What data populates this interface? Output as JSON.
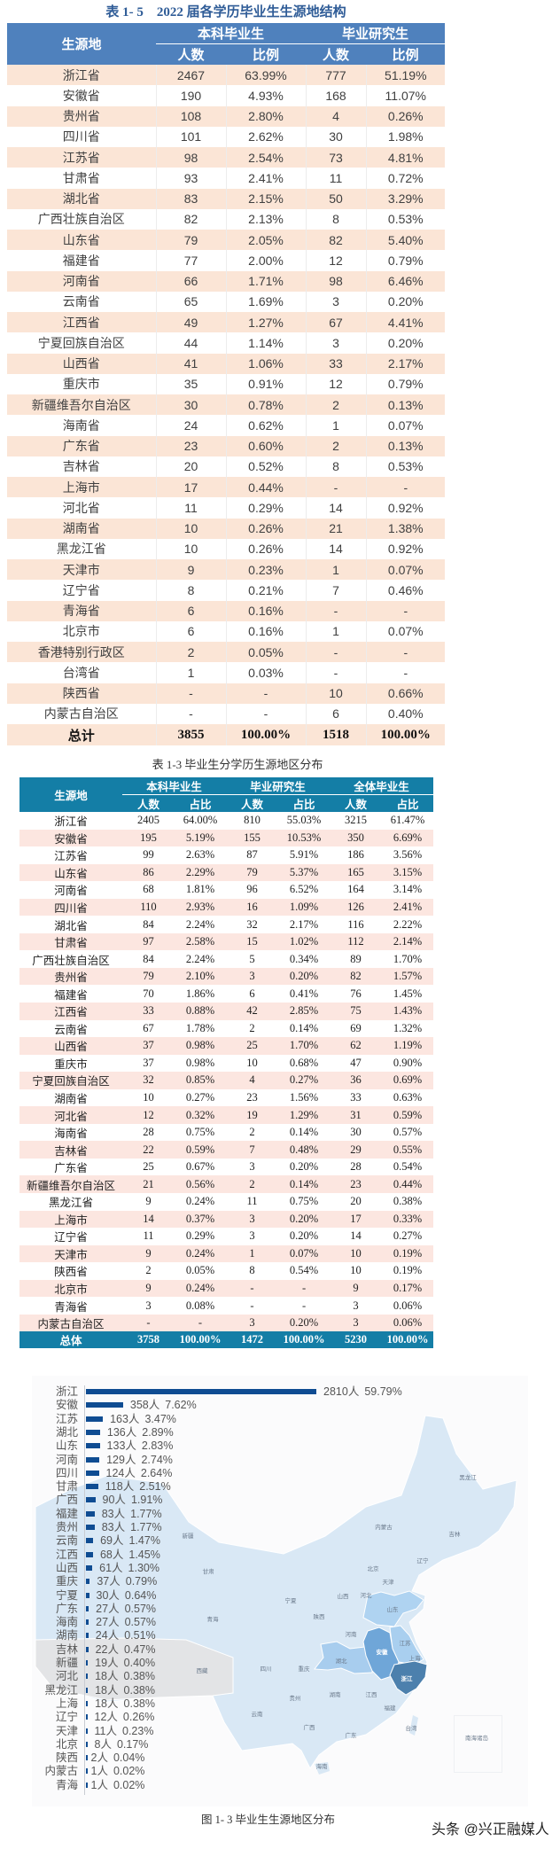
{
  "table1": {
    "title": "表 1- 5　2022 届各学历毕业生生源地结构",
    "header": {
      "region": "生源地",
      "groups": [
        "本科毕业生",
        "毕业研究生"
      ],
      "sub": [
        "人数",
        "比例",
        "人数",
        "比例"
      ]
    },
    "rows": [
      [
        "浙江省",
        "2467",
        "63.99%",
        "777",
        "51.19%"
      ],
      [
        "安徽省",
        "190",
        "4.93%",
        "168",
        "11.07%"
      ],
      [
        "贵州省",
        "108",
        "2.80%",
        "4",
        "0.26%"
      ],
      [
        "四川省",
        "101",
        "2.62%",
        "30",
        "1.98%"
      ],
      [
        "江苏省",
        "98",
        "2.54%",
        "73",
        "4.81%"
      ],
      [
        "甘肃省",
        "93",
        "2.41%",
        "11",
        "0.72%"
      ],
      [
        "湖北省",
        "83",
        "2.15%",
        "50",
        "3.29%"
      ],
      [
        "广西壮族自治区",
        "82",
        "2.13%",
        "8",
        "0.53%"
      ],
      [
        "山东省",
        "79",
        "2.05%",
        "82",
        "5.40%"
      ],
      [
        "福建省",
        "77",
        "2.00%",
        "12",
        "0.79%"
      ],
      [
        "河南省",
        "66",
        "1.71%",
        "98",
        "6.46%"
      ],
      [
        "云南省",
        "65",
        "1.69%",
        "3",
        "0.20%"
      ],
      [
        "江西省",
        "49",
        "1.27%",
        "67",
        "4.41%"
      ],
      [
        "宁夏回族自治区",
        "44",
        "1.14%",
        "3",
        "0.20%"
      ],
      [
        "山西省",
        "41",
        "1.06%",
        "33",
        "2.17%"
      ],
      [
        "重庆市",
        "35",
        "0.91%",
        "12",
        "0.79%"
      ],
      [
        "新疆维吾尔自治区",
        "30",
        "0.78%",
        "2",
        "0.13%"
      ],
      [
        "海南省",
        "24",
        "0.62%",
        "1",
        "0.07%"
      ],
      [
        "广东省",
        "23",
        "0.60%",
        "2",
        "0.13%"
      ],
      [
        "吉林省",
        "20",
        "0.52%",
        "8",
        "0.53%"
      ],
      [
        "上海市",
        "17",
        "0.44%",
        "-",
        "-"
      ],
      [
        "河北省",
        "11",
        "0.29%",
        "14",
        "0.92%"
      ],
      [
        "湖南省",
        "10",
        "0.26%",
        "21",
        "1.38%"
      ],
      [
        "黑龙江省",
        "10",
        "0.26%",
        "14",
        "0.92%"
      ],
      [
        "天津市",
        "9",
        "0.23%",
        "1",
        "0.07%"
      ],
      [
        "辽宁省",
        "8",
        "0.21%",
        "7",
        "0.46%"
      ],
      [
        "青海省",
        "6",
        "0.16%",
        "-",
        "-"
      ],
      [
        "北京市",
        "6",
        "0.16%",
        "1",
        "0.07%"
      ],
      [
        "香港特别行政区",
        "2",
        "0.05%",
        "-",
        "-"
      ],
      [
        "台湾省",
        "1",
        "0.03%",
        "-",
        "-"
      ],
      [
        "陕西省",
        "-",
        "-",
        "10",
        "0.66%"
      ],
      [
        "内蒙古自治区",
        "-",
        "-",
        "6",
        "0.40%"
      ]
    ],
    "total": [
      "总计",
      "3855",
      "100.00%",
      "1518",
      "100.00%"
    ]
  },
  "table2": {
    "title": "表 1-3 毕业生分学历生源地区分布",
    "header": {
      "region": "生源地",
      "groups": [
        "本科毕业生",
        "毕业研究生",
        "全体毕业生"
      ],
      "sub": [
        "人数",
        "占比",
        "人数",
        "占比",
        "人数",
        "占比"
      ]
    },
    "rows": [
      [
        "浙江省",
        "2405",
        "64.00%",
        "810",
        "55.03%",
        "3215",
        "61.47%"
      ],
      [
        "安徽省",
        "195",
        "5.19%",
        "155",
        "10.53%",
        "350",
        "6.69%"
      ],
      [
        "江苏省",
        "99",
        "2.63%",
        "87",
        "5.91%",
        "186",
        "3.56%"
      ],
      [
        "山东省",
        "86",
        "2.29%",
        "79",
        "5.37%",
        "165",
        "3.15%"
      ],
      [
        "河南省",
        "68",
        "1.81%",
        "96",
        "6.52%",
        "164",
        "3.14%"
      ],
      [
        "四川省",
        "110",
        "2.93%",
        "16",
        "1.09%",
        "126",
        "2.41%"
      ],
      [
        "湖北省",
        "84",
        "2.24%",
        "32",
        "2.17%",
        "116",
        "2.22%"
      ],
      [
        "甘肃省",
        "97",
        "2.58%",
        "15",
        "1.02%",
        "112",
        "2.14%"
      ],
      [
        "广西壮族自治区",
        "84",
        "2.24%",
        "5",
        "0.34%",
        "89",
        "1.70%"
      ],
      [
        "贵州省",
        "79",
        "2.10%",
        "3",
        "0.20%",
        "82",
        "1.57%"
      ],
      [
        "福建省",
        "70",
        "1.86%",
        "6",
        "0.41%",
        "76",
        "1.45%"
      ],
      [
        "江西省",
        "33",
        "0.88%",
        "42",
        "2.85%",
        "75",
        "1.43%"
      ],
      [
        "云南省",
        "67",
        "1.78%",
        "2",
        "0.14%",
        "69",
        "1.32%"
      ],
      [
        "山西省",
        "37",
        "0.98%",
        "25",
        "1.70%",
        "62",
        "1.19%"
      ],
      [
        "重庆市",
        "37",
        "0.98%",
        "10",
        "0.68%",
        "47",
        "0.90%"
      ],
      [
        "宁夏回族自治区",
        "32",
        "0.85%",
        "4",
        "0.27%",
        "36",
        "0.69%"
      ],
      [
        "湖南省",
        "10",
        "0.27%",
        "23",
        "1.56%",
        "33",
        "0.63%"
      ],
      [
        "河北省",
        "12",
        "0.32%",
        "19",
        "1.29%",
        "31",
        "0.59%"
      ],
      [
        "海南省",
        "28",
        "0.75%",
        "2",
        "0.14%",
        "30",
        "0.57%"
      ],
      [
        "吉林省",
        "22",
        "0.59%",
        "7",
        "0.48%",
        "29",
        "0.55%"
      ],
      [
        "广东省",
        "25",
        "0.67%",
        "3",
        "0.20%",
        "28",
        "0.54%"
      ],
      [
        "新疆维吾尔自治区",
        "21",
        "0.56%",
        "2",
        "0.14%",
        "23",
        "0.44%"
      ],
      [
        "黑龙江省",
        "9",
        "0.24%",
        "11",
        "0.75%",
        "20",
        "0.38%"
      ],
      [
        "上海市",
        "14",
        "0.37%",
        "3",
        "0.20%",
        "17",
        "0.33%"
      ],
      [
        "辽宁省",
        "11",
        "0.29%",
        "3",
        "0.20%",
        "14",
        "0.27%"
      ],
      [
        "天津市",
        "9",
        "0.24%",
        "1",
        "0.07%",
        "10",
        "0.19%"
      ],
      [
        "陕西省",
        "2",
        "0.05%",
        "8",
        "0.54%",
        "10",
        "0.19%"
      ],
      [
        "北京市",
        "9",
        "0.24%",
        "-",
        "-",
        "9",
        "0.17%"
      ],
      [
        "青海省",
        "3",
        "0.08%",
        "-",
        "-",
        "3",
        "0.06%"
      ],
      [
        "内蒙古自治区",
        "-",
        "-",
        "3",
        "0.20%",
        "3",
        "0.06%"
      ]
    ],
    "total": [
      "总体",
      "3758",
      "100.00%",
      "1472",
      "100.00%",
      "5230",
      "100.00%"
    ]
  },
  "chart_data": {
    "type": "bar",
    "orientation": "horizontal",
    "caption": "图 1- 3  毕业生生源地区分布",
    "unit": "人",
    "categories": [
      "浙江",
      "安徽",
      "江苏",
      "湖北",
      "山东",
      "河南",
      "四川",
      "甘肃",
      "广西",
      "福建",
      "贵州",
      "云南",
      "江西",
      "山西",
      "重庆",
      "宁夏",
      "广东",
      "海南",
      "湖南",
      "吉林",
      "新疆",
      "河北",
      "黑龙江",
      "上海",
      "辽宁",
      "天津",
      "北京",
      "陕西",
      "内蒙古",
      "青海"
    ],
    "values": [
      2810,
      358,
      163,
      136,
      133,
      129,
      124,
      118,
      90,
      83,
      83,
      69,
      68,
      61,
      37,
      30,
      27,
      27,
      24,
      22,
      19,
      18,
      18,
      18,
      12,
      11,
      8,
      2,
      1,
      1
    ],
    "percent_labels": [
      "59.79%",
      "7.62%",
      "3.47%",
      "2.89%",
      "2.83%",
      "2.74%",
      "2.64%",
      "2.51%",
      "1.91%",
      "1.77%",
      "1.77%",
      "1.47%",
      "1.45%",
      "1.30%",
      "0.79%",
      "0.64%",
      "0.57%",
      "0.57%",
      "0.51%",
      "0.47%",
      "0.40%",
      "0.38%",
      "0.38%",
      "0.38%",
      "0.26%",
      "0.23%",
      "0.17%",
      "0.04%",
      "0.02%",
      "0.02%"
    ],
    "bar_color": "#0f4c92",
    "grid": false
  },
  "map": {
    "labels": [
      "黑龙江",
      "内蒙古",
      "吉林",
      "辽宁",
      "北京",
      "天津",
      "河北",
      "山西",
      "宁夏",
      "甘肃",
      "青海",
      "陕西",
      "山东",
      "河南",
      "江苏",
      "安徽",
      "上海",
      "湖北",
      "四川",
      "重庆",
      "浙江",
      "湖南",
      "江西",
      "贵州",
      "福建",
      "云南",
      "广西",
      "台湾",
      "广东",
      "海南",
      "南海诸岛",
      "西藏",
      "新疆"
    ],
    "colors": {
      "base": "#d9e8f5",
      "border": "#ffffff",
      "no_data": "#e3e4e6",
      "zhejiang": "#4c80ad",
      "anhui": "#6fa6d8",
      "jiangsu": "#a9cfef",
      "shandong": "#afd3f1",
      "hubei": "#a8cdee"
    }
  },
  "watermark": "头条 @兴正融媒人"
}
